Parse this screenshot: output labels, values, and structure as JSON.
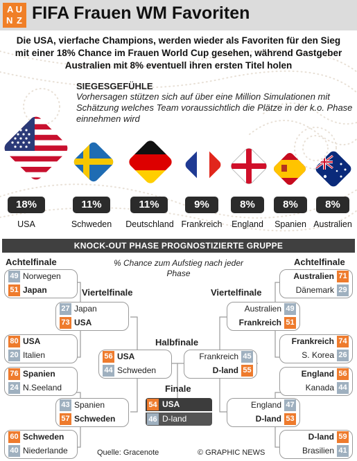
{
  "header": {
    "logo_line1": "A U",
    "logo_line2": "N Z",
    "title": "FIFA Frauen WM Favoriten"
  },
  "subtitle_lines": [
    "Die USA, vierfache Champions, werden wieder als Favoriten für den Sieg",
    "mit einer 18% Chance im Frauen World Cup gesehen, während Gastgeber",
    "Australien mit 8% eventuell ihren ersten Titel holen"
  ],
  "siegesgefuehle": {
    "title": "SIEGESGEFÜHLE",
    "text": "Vorhersagen stützen sich auf über eine Million Simulationen mit Schätzung welches Team voraussichtlich die Plätze in der k.o. Phase einnehmen wird"
  },
  "favorites": [
    {
      "country": "USA",
      "pct": "18%",
      "flag": "usa-flag"
    },
    {
      "country": "Schweden",
      "pct": "11%",
      "flag": "sweden-flag"
    },
    {
      "country": "Deutschland",
      "pct": "11%",
      "flag": "germany-flag"
    },
    {
      "country": "Frankreich",
      "pct": "9%",
      "flag": "france-flag"
    },
    {
      "country": "England",
      "pct": "8%",
      "flag": "england-flag"
    },
    {
      "country": "Spanien",
      "pct": "8%",
      "flag": "spain-flag"
    },
    {
      "country": "Australien",
      "pct": "8%",
      "flag": "australia-flag"
    }
  ],
  "knockout": {
    "banner": "KNOCK-OUT PHASE PROGNOSTIZIERTE GRUPPE",
    "note": "% Chance zum Aufstieg nach jeder Phase",
    "stages": {
      "r16_left": "Achtelfinale",
      "r16_right": "Achtelfinale",
      "qf_left": "Viertelfinale",
      "qf_right": "Viertelfinale",
      "sf": "Halbfinale",
      "final": "Finale"
    },
    "matches": {
      "r16_l1": [
        {
          "pct": "49",
          "team": "Norwegen"
        },
        {
          "pct": "51",
          "team": "Japan"
        }
      ],
      "r16_l2": [
        {
          "pct": "80",
          "team": "USA"
        },
        {
          "pct": "20",
          "team": "Italien"
        }
      ],
      "r16_l3": [
        {
          "pct": "76",
          "team": "Spanien"
        },
        {
          "pct": "24",
          "team": "N.Seeland"
        }
      ],
      "r16_l4": [
        {
          "pct": "60",
          "team": "Schweden"
        },
        {
          "pct": "40",
          "team": "Niederlande"
        }
      ],
      "qf_l1": [
        {
          "pct": "27",
          "team": "Japan"
        },
        {
          "pct": "73",
          "team": "USA"
        }
      ],
      "qf_l2": [
        {
          "pct": "43",
          "team": "Spanien"
        },
        {
          "pct": "57",
          "team": "Schweden"
        }
      ],
      "sf_l": [
        {
          "pct": "56",
          "team": "USA"
        },
        {
          "pct": "44",
          "team": "Schweden"
        }
      ],
      "final": [
        {
          "pct": "54",
          "team": "USA"
        },
        {
          "pct": "46",
          "team": "D-land"
        }
      ],
      "sf_r": [
        {
          "pct": "45",
          "team": "Frankreich"
        },
        {
          "pct": "55",
          "team": "D-land"
        }
      ],
      "qf_r1": [
        {
          "pct": "49",
          "team": "Australien"
        },
        {
          "pct": "51",
          "team": "Frankreich"
        }
      ],
      "qf_r2": [
        {
          "pct": "47",
          "team": "England"
        },
        {
          "pct": "53",
          "team": "D-land"
        }
      ],
      "r16_r1": [
        {
          "pct": "71",
          "team": "Australien"
        },
        {
          "pct": "29",
          "team": "Dänemark"
        }
      ],
      "r16_r2": [
        {
          "pct": "74",
          "team": "Frankreich"
        },
        {
          "pct": "26",
          "team": "S. Korea"
        }
      ],
      "r16_r3": [
        {
          "pct": "56",
          "team": "England"
        },
        {
          "pct": "44",
          "team": "Kanada"
        }
      ],
      "r16_r4": [
        {
          "pct": "59",
          "team": "D-land"
        },
        {
          "pct": "41",
          "team": "Brasilien"
        }
      ]
    }
  },
  "footer": {
    "source": "Quelle: Gracenote",
    "credit": "© GRAPHIC NEWS"
  },
  "colors": {
    "accent_orange": "#ee7b2d",
    "loser_blue": "#9fb0bf",
    "dark": "#2b2b2b"
  }
}
